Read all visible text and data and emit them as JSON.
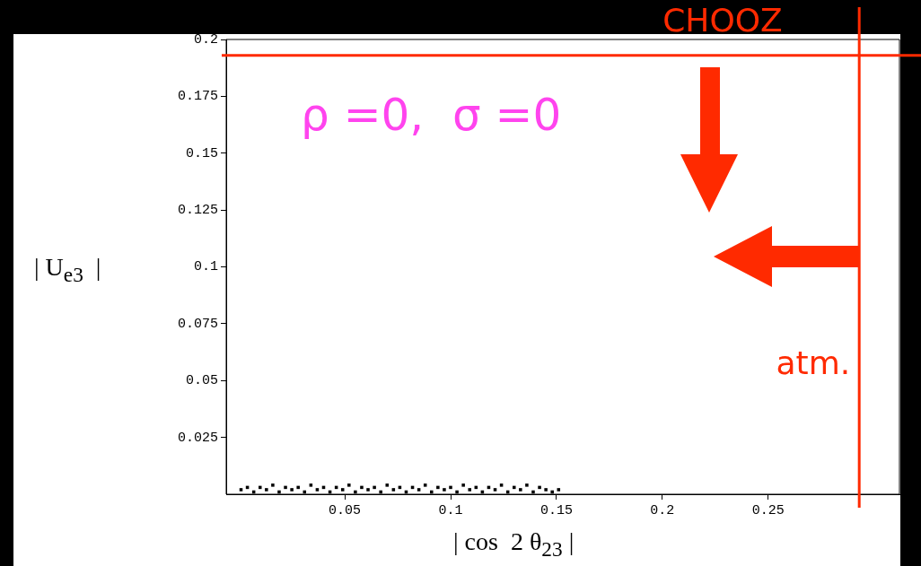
{
  "chart_data": {
    "type": "scatter",
    "xlabel": "| cos  2 θ$_{23}$ |",
    "ylabel": "| U$_{e3}$  |",
    "xlim": [
      -0.006,
      0.312
    ],
    "xticks": [
      0.05,
      0.1,
      0.15,
      0.2,
      0.25
    ],
    "ylim": [
      0,
      0.2
    ],
    "yticks": [
      0.025,
      0.05,
      0.075,
      0.1,
      0.125,
      0.15,
      0.175,
      0.2
    ],
    "grid": false,
    "legend": false,
    "marker": "square",
    "annotations": [
      "ρ =0,  σ =0"
    ],
    "ref_lines": [
      {
        "axis": "y",
        "value": 0.193,
        "label": "CHOOZ",
        "color": "#ff2a00"
      },
      {
        "axis": "x",
        "value": 0.293,
        "label": "atm.",
        "color": "#ff2a00"
      }
    ],
    "series": [
      {
        "color": "#000000",
        "x": [
          0.001,
          0.004,
          0.007,
          0.01,
          0.013,
          0.016,
          0.019,
          0.022,
          0.025,
          0.028,
          0.031,
          0.034,
          0.037,
          0.04,
          0.043,
          0.046,
          0.049,
          0.052,
          0.055,
          0.058,
          0.061,
          0.064,
          0.067,
          0.07,
          0.073,
          0.076,
          0.079,
          0.082,
          0.085,
          0.088,
          0.091,
          0.094,
          0.097,
          0.1,
          0.103,
          0.106,
          0.109,
          0.112,
          0.115,
          0.118,
          0.121,
          0.124,
          0.127,
          0.13,
          0.133,
          0.136,
          0.139,
          0.142,
          0.145,
          0.148,
          0.151
        ],
        "values": [
          0.002,
          0.003,
          0.001,
          0.003,
          0.002,
          0.004,
          0.001,
          0.003,
          0.002,
          0.003,
          0.001,
          0.004,
          0.002,
          0.003,
          0.001,
          0.003,
          0.002,
          0.004,
          0.001,
          0.003,
          0.002,
          0.003,
          0.001,
          0.004,
          0.002,
          0.003,
          0.001,
          0.003,
          0.002,
          0.004,
          0.001,
          0.003,
          0.002,
          0.003,
          0.001,
          0.004,
          0.002,
          0.003,
          0.001,
          0.003,
          0.002,
          0.004,
          0.001,
          0.003,
          0.002,
          0.004,
          0.001,
          0.003,
          0.002,
          0.001,
          0.002
        ]
      }
    ]
  }
}
